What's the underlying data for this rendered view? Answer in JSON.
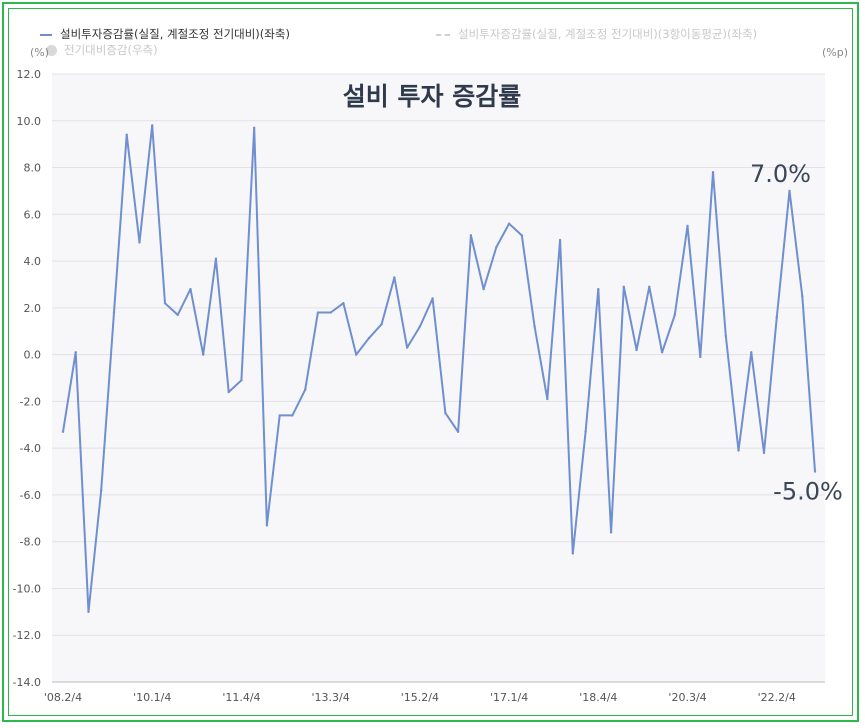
{
  "chart_data": {
    "type": "line",
    "title": "설비 투자 증감률",
    "legend": [
      {
        "label": "설비투자증감률(실질, 계절조정 전기대비)(좌축)",
        "style": "line",
        "color": "#6f8fd0",
        "active": true
      },
      {
        "label": "설비투자증감률(실질, 계절조정 전기대비)(3항이동평균)(좌축)",
        "style": "dashed",
        "color": "#d0d0d0",
        "active": false
      },
      {
        "label": "전기대비증감(우측)",
        "style": "dot",
        "color": "#d8d8d8",
        "active": false
      }
    ],
    "left_unit": "(%)",
    "right_unit": "(%p)",
    "ylim": [
      -14,
      12
    ],
    "yticks": [
      12.0,
      10.0,
      8.0,
      6.0,
      4.0,
      2.0,
      0.0,
      -2.0,
      -4.0,
      -6.0,
      -8.0,
      -10.0,
      -12.0,
      -14.0
    ],
    "ytick_labels": [
      "12.0",
      "10.0",
      "8.0",
      "6.0",
      "4.0",
      "2.0",
      "0.0",
      "-2.0",
      "-4.0",
      "-6.0",
      "-8.0",
      "-10.0",
      "-12.0",
      "-14.0"
    ],
    "xtick_labels": [
      "'08.2/4",
      "'10.1/4",
      "'11.4/4",
      "'13.3/4",
      "'15.2/4",
      "'17.1/4",
      "'18.4/4",
      "'20.3/4",
      "'22.2/4"
    ],
    "xtick_index": [
      0,
      7,
      14,
      21,
      28,
      35,
      42,
      49,
      56
    ],
    "grid": "horizontal",
    "series": [
      {
        "name": "설비투자증감률(실질, 계절조정 전기대비)(좌축)",
        "color": "#6f8fd0",
        "values": [
          -3.3,
          0.1,
          -11.0,
          -5.8,
          1.8,
          9.4,
          4.8,
          9.8,
          2.2,
          1.7,
          2.8,
          0.0,
          4.1,
          -1.6,
          -1.1,
          9.7,
          -7.3,
          -2.6,
          -2.6,
          -1.5,
          1.8,
          1.8,
          2.2,
          0.0,
          0.7,
          1.3,
          3.3,
          0.3,
          1.2,
          2.4,
          -2.5,
          -3.3,
          5.1,
          2.8,
          4.6,
          5.6,
          5.1,
          1.2,
          -1.9,
          4.9,
          -8.5,
          -3.3,
          2.8,
          -7.6,
          2.9,
          0.2,
          2.9,
          0.1,
          1.7,
          5.5,
          -0.1,
          7.8,
          0.8,
          -4.1,
          0.1,
          -4.2,
          1.6,
          7.0,
          2.5,
          -5.0
        ]
      }
    ],
    "annotations": [
      {
        "text": "7.0%",
        "index": 57,
        "value": 7.0
      },
      {
        "text": "-5.0%",
        "index": 59,
        "value": -5.0
      }
    ]
  }
}
